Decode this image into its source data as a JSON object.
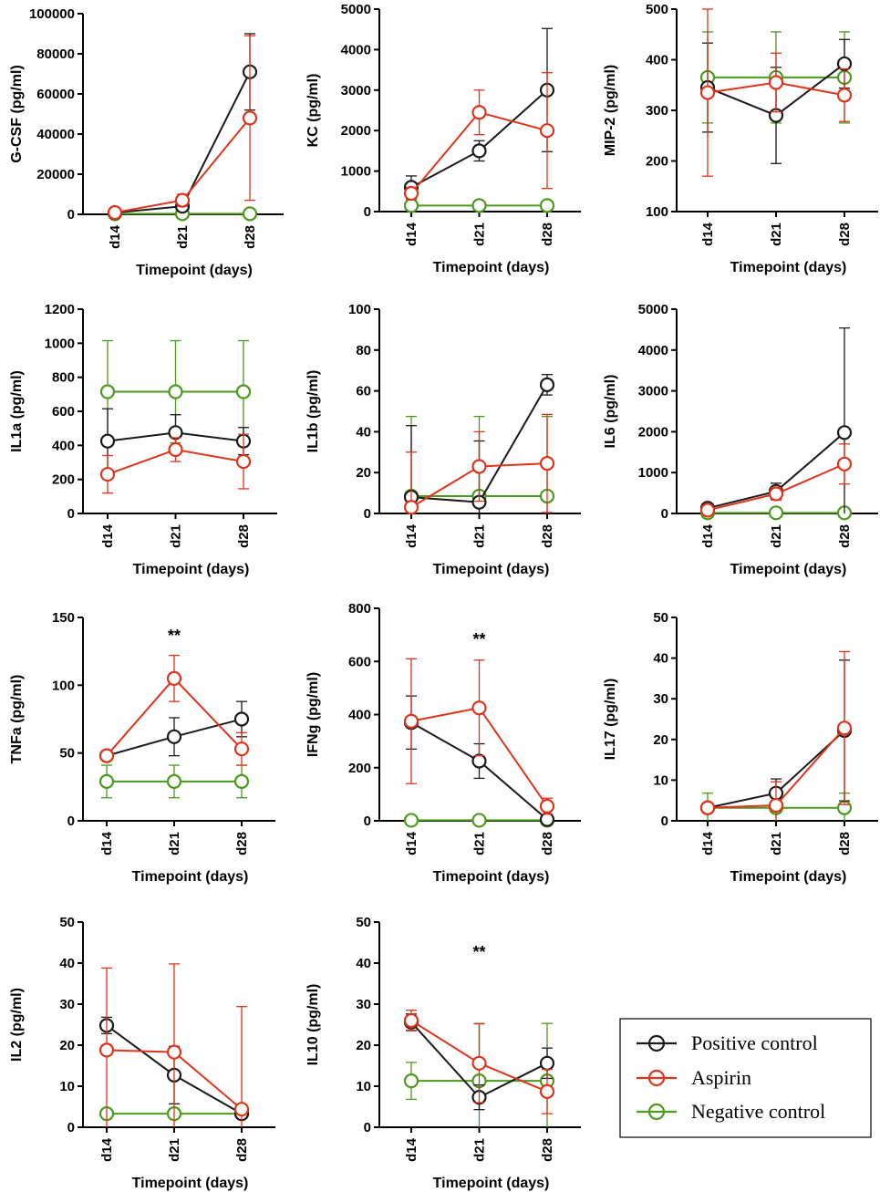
{
  "colors": {
    "positive_control": "#1a1a1a",
    "aspirin": "#e0341a",
    "negative_control": "#4a9a1c"
  },
  "legend": {
    "items": [
      {
        "label": "Positive control",
        "series_key": "positive_control"
      },
      {
        "label": "Aspirin",
        "series_key": "aspirin"
      },
      {
        "label": "Negative control",
        "series_key": "negative_control"
      }
    ]
  },
  "chart_data": [
    {
      "type": "line",
      "title": "",
      "ylabel": "G-CSF (pg/ml)",
      "xlabel": "Timepoint (days)",
      "categories": [
        "d14",
        "d21",
        "d28"
      ],
      "ylim": [
        0,
        100000
      ],
      "yticks": [
        0,
        20000,
        40000,
        60000,
        80000,
        100000
      ],
      "significance": "",
      "series": [
        {
          "name": "Positive control",
          "key": "positive_control",
          "values": [
            800,
            4000,
            71000
          ],
          "err": [
            500,
            2000,
            19000
          ]
        },
        {
          "name": "Aspirin",
          "key": "aspirin",
          "values": [
            900,
            7000,
            48000
          ],
          "err": [
            600,
            3000,
            41000
          ]
        },
        {
          "name": "Negative control",
          "key": "negative_control",
          "values": [
            300,
            300,
            300
          ],
          "err": [
            100,
            100,
            100
          ]
        }
      ]
    },
    {
      "type": "line",
      "title": "",
      "ylabel": "KC (pg/ml)",
      "xlabel": "Timepoint (days)",
      "categories": [
        "d14",
        "d21",
        "d28"
      ],
      "ylim": [
        0,
        5000
      ],
      "yticks": [
        0,
        1000,
        2000,
        3000,
        4000,
        5000
      ],
      "significance": "",
      "series": [
        {
          "name": "Positive control",
          "key": "positive_control",
          "values": [
            600,
            1500,
            3000
          ],
          "err": [
            280,
            250,
            1520
          ]
        },
        {
          "name": "Aspirin",
          "key": "aspirin",
          "values": [
            450,
            2450,
            2000
          ],
          "err": [
            150,
            550,
            1430
          ]
        },
        {
          "name": "Negative control",
          "key": "negative_control",
          "values": [
            150,
            150,
            150
          ],
          "err": [
            30,
            30,
            30
          ]
        }
      ]
    },
    {
      "type": "line",
      "title": "",
      "ylabel": "MIP-2 (pg/ml)",
      "xlabel": "Timepoint (days)",
      "categories": [
        "d14",
        "d21",
        "d28"
      ],
      "ylim": [
        100,
        500
      ],
      "yticks": [
        100,
        200,
        300,
        400,
        500
      ],
      "significance": "",
      "series": [
        {
          "name": "Positive control",
          "key": "positive_control",
          "values": [
            345,
            290,
            392
          ],
          "err": [
            88,
            95,
            48
          ]
        },
        {
          "name": "Aspirin",
          "key": "aspirin",
          "values": [
            335,
            355,
            330
          ],
          "err": [
            165,
            58,
            52
          ]
        },
        {
          "name": "Negative control",
          "key": "negative_control",
          "values": [
            365,
            365,
            365
          ],
          "err": [
            90,
            90,
            90
          ]
        }
      ]
    },
    {
      "type": "line",
      "title": "",
      "ylabel": "IL1a (pg/ml)",
      "xlabel": "Timepoint (days)",
      "categories": [
        "d14",
        "d21",
        "d28"
      ],
      "ylim": [
        0,
        1200
      ],
      "yticks": [
        0,
        200,
        400,
        600,
        800,
        1000,
        1200
      ],
      "significance": "",
      "series": [
        {
          "name": "Positive control",
          "key": "positive_control",
          "values": [
            425,
            475,
            425
          ],
          "err": [
            190,
            105,
            80
          ]
        },
        {
          "name": "Aspirin",
          "key": "aspirin",
          "values": [
            230,
            375,
            305
          ],
          "err": [
            110,
            70,
            160
          ]
        },
        {
          "name": "Negative control",
          "key": "negative_control",
          "values": [
            715,
            715,
            715
          ],
          "err": [
            300,
            300,
            300
          ]
        }
      ]
    },
    {
      "type": "line",
      "title": "",
      "ylabel": "IL1b (pg/ml)",
      "xlabel": "Timepoint (days)",
      "categories": [
        "d14",
        "d21",
        "d28"
      ],
      "ylim": [
        0,
        100
      ],
      "yticks": [
        0,
        20,
        40,
        60,
        80,
        100
      ],
      "significance": "",
      "series": [
        {
          "name": "Positive control",
          "key": "positive_control",
          "values": [
            8,
            5.5,
            63
          ],
          "err": [
            35,
            30,
            5
          ]
        },
        {
          "name": "Aspirin",
          "key": "aspirin",
          "values": [
            3,
            23,
            24.5
          ],
          "err": [
            27,
            17,
            24
          ]
        },
        {
          "name": "Negative control",
          "key": "negative_control",
          "values": [
            8.5,
            8.5,
            8.5
          ],
          "err": [
            39,
            39,
            39
          ]
        }
      ]
    },
    {
      "type": "line",
      "title": "",
      "ylabel": "IL6 (pg/ml)",
      "xlabel": "Timepoint (days)",
      "categories": [
        "d14",
        "d21",
        "d28"
      ],
      "ylim": [
        0,
        5000
      ],
      "yticks": [
        0,
        1000,
        2000,
        3000,
        4000,
        5000
      ],
      "significance": "",
      "series": [
        {
          "name": "Positive control",
          "key": "positive_control",
          "values": [
            130,
            540,
            1980
          ],
          "err": [
            60,
            200,
            2560
          ]
        },
        {
          "name": "Aspirin",
          "key": "aspirin",
          "values": [
            80,
            480,
            1210
          ],
          "err": [
            40,
            150,
            490
          ]
        },
        {
          "name": "Negative control",
          "key": "negative_control",
          "values": [
            15,
            15,
            15
          ],
          "err": [
            5,
            5,
            5
          ]
        }
      ]
    },
    {
      "type": "line",
      "title": "",
      "ylabel": "TNFa (pg/ml)",
      "xlabel": "Timepoint (days)",
      "categories": [
        "d14",
        "d21",
        "d28"
      ],
      "ylim": [
        0,
        150
      ],
      "yticks": [
        0,
        50,
        100,
        150
      ],
      "significance": "**",
      "series": [
        {
          "name": "Positive control",
          "key": "positive_control",
          "values": [
            48,
            62,
            75
          ],
          "err": [
            3,
            14,
            13
          ]
        },
        {
          "name": "Aspirin",
          "key": "aspirin",
          "values": [
            48,
            105,
            53
          ],
          "err": [
            3,
            17,
            12
          ]
        },
        {
          "name": "Negative control",
          "key": "negative_control",
          "values": [
            29,
            29,
            29
          ],
          "err": [
            12,
            12,
            12
          ]
        }
      ]
    },
    {
      "type": "line",
      "title": "",
      "ylabel": "IFNg (pg/ml)",
      "xlabel": "Timepoint (days)",
      "categories": [
        "d14",
        "d21",
        "d28"
      ],
      "ylim": [
        0,
        800
      ],
      "yticks": [
        0,
        200,
        400,
        600,
        800
      ],
      "significance": "**",
      "series": [
        {
          "name": "Positive control",
          "key": "positive_control",
          "values": [
            370,
            225,
            5
          ],
          "err": [
            100,
            65,
            3
          ]
        },
        {
          "name": "Aspirin",
          "key": "aspirin",
          "values": [
            375,
            425,
            55
          ],
          "err": [
            235,
            180,
            30
          ]
        },
        {
          "name": "Negative control",
          "key": "negative_control",
          "values": [
            2,
            2,
            2
          ],
          "err": [
            1,
            1,
            1
          ]
        }
      ]
    },
    {
      "type": "line",
      "title": "",
      "ylabel": "IL17 (pg/ml)",
      "xlabel": "Timepoint (days)",
      "categories": [
        "d14",
        "d21",
        "d28"
      ],
      "ylim": [
        0,
        50
      ],
      "yticks": [
        0,
        10,
        20,
        30,
        40,
        50
      ],
      "significance": "",
      "series": [
        {
          "name": "Positive control",
          "key": "positive_control",
          "values": [
            3.2,
            6.8,
            22.2
          ],
          "err": [
            0.5,
            3.5,
            17.3
          ]
        },
        {
          "name": "Aspirin",
          "key": "aspirin",
          "values": [
            3.2,
            3.8,
            22.8
          ],
          "err": [
            0.5,
            5.8,
            18.8
          ]
        },
        {
          "name": "Negative control",
          "key": "negative_control",
          "values": [
            3.2,
            3.2,
            3.2
          ],
          "err": [
            3.6,
            3.6,
            3.6
          ]
        }
      ]
    },
    {
      "type": "line",
      "title": "",
      "ylabel": "IL2 (pg/ml)",
      "xlabel": "Timepoint (days)",
      "categories": [
        "d14",
        "d21",
        "d28"
      ],
      "ylim": [
        0,
        50
      ],
      "yticks": [
        0,
        10,
        20,
        30,
        40,
        50
      ],
      "significance": "",
      "series": [
        {
          "name": "Positive control",
          "key": "positive_control",
          "values": [
            24.8,
            12.7,
            3.3
          ],
          "err": [
            2,
            7,
            0.5
          ]
        },
        {
          "name": "Aspirin",
          "key": "aspirin",
          "values": [
            18.8,
            18.3,
            4.4
          ],
          "err": [
            20,
            21.5,
            25
          ]
        },
        {
          "name": "Negative control",
          "key": "negative_control",
          "values": [
            3.3,
            3.3,
            3.3
          ],
          "err": [
            0.5,
            0.5,
            0.5
          ]
        }
      ]
    },
    {
      "type": "line",
      "title": "",
      "ylabel": "IL10 (pg/ml)",
      "xlabel": "Timepoint (days)",
      "categories": [
        "d14",
        "d21",
        "d28"
      ],
      "ylim": [
        0,
        50
      ],
      "yticks": [
        0,
        10,
        20,
        30,
        40,
        50
      ],
      "significance": "**",
      "series": [
        {
          "name": "Positive control",
          "key": "positive_control",
          "values": [
            25.6,
            7.3,
            15.6
          ],
          "err": [
            2,
            3,
            3.7
          ]
        },
        {
          "name": "Aspirin",
          "key": "aspirin",
          "values": [
            26,
            15.6,
            8.7
          ],
          "err": [
            2.5,
            9.6,
            5.4
          ]
        },
        {
          "name": "Negative control",
          "key": "negative_control",
          "values": [
            11.3,
            11.3,
            11.3
          ],
          "err": [
            4.5,
            14,
            14
          ]
        }
      ]
    }
  ]
}
